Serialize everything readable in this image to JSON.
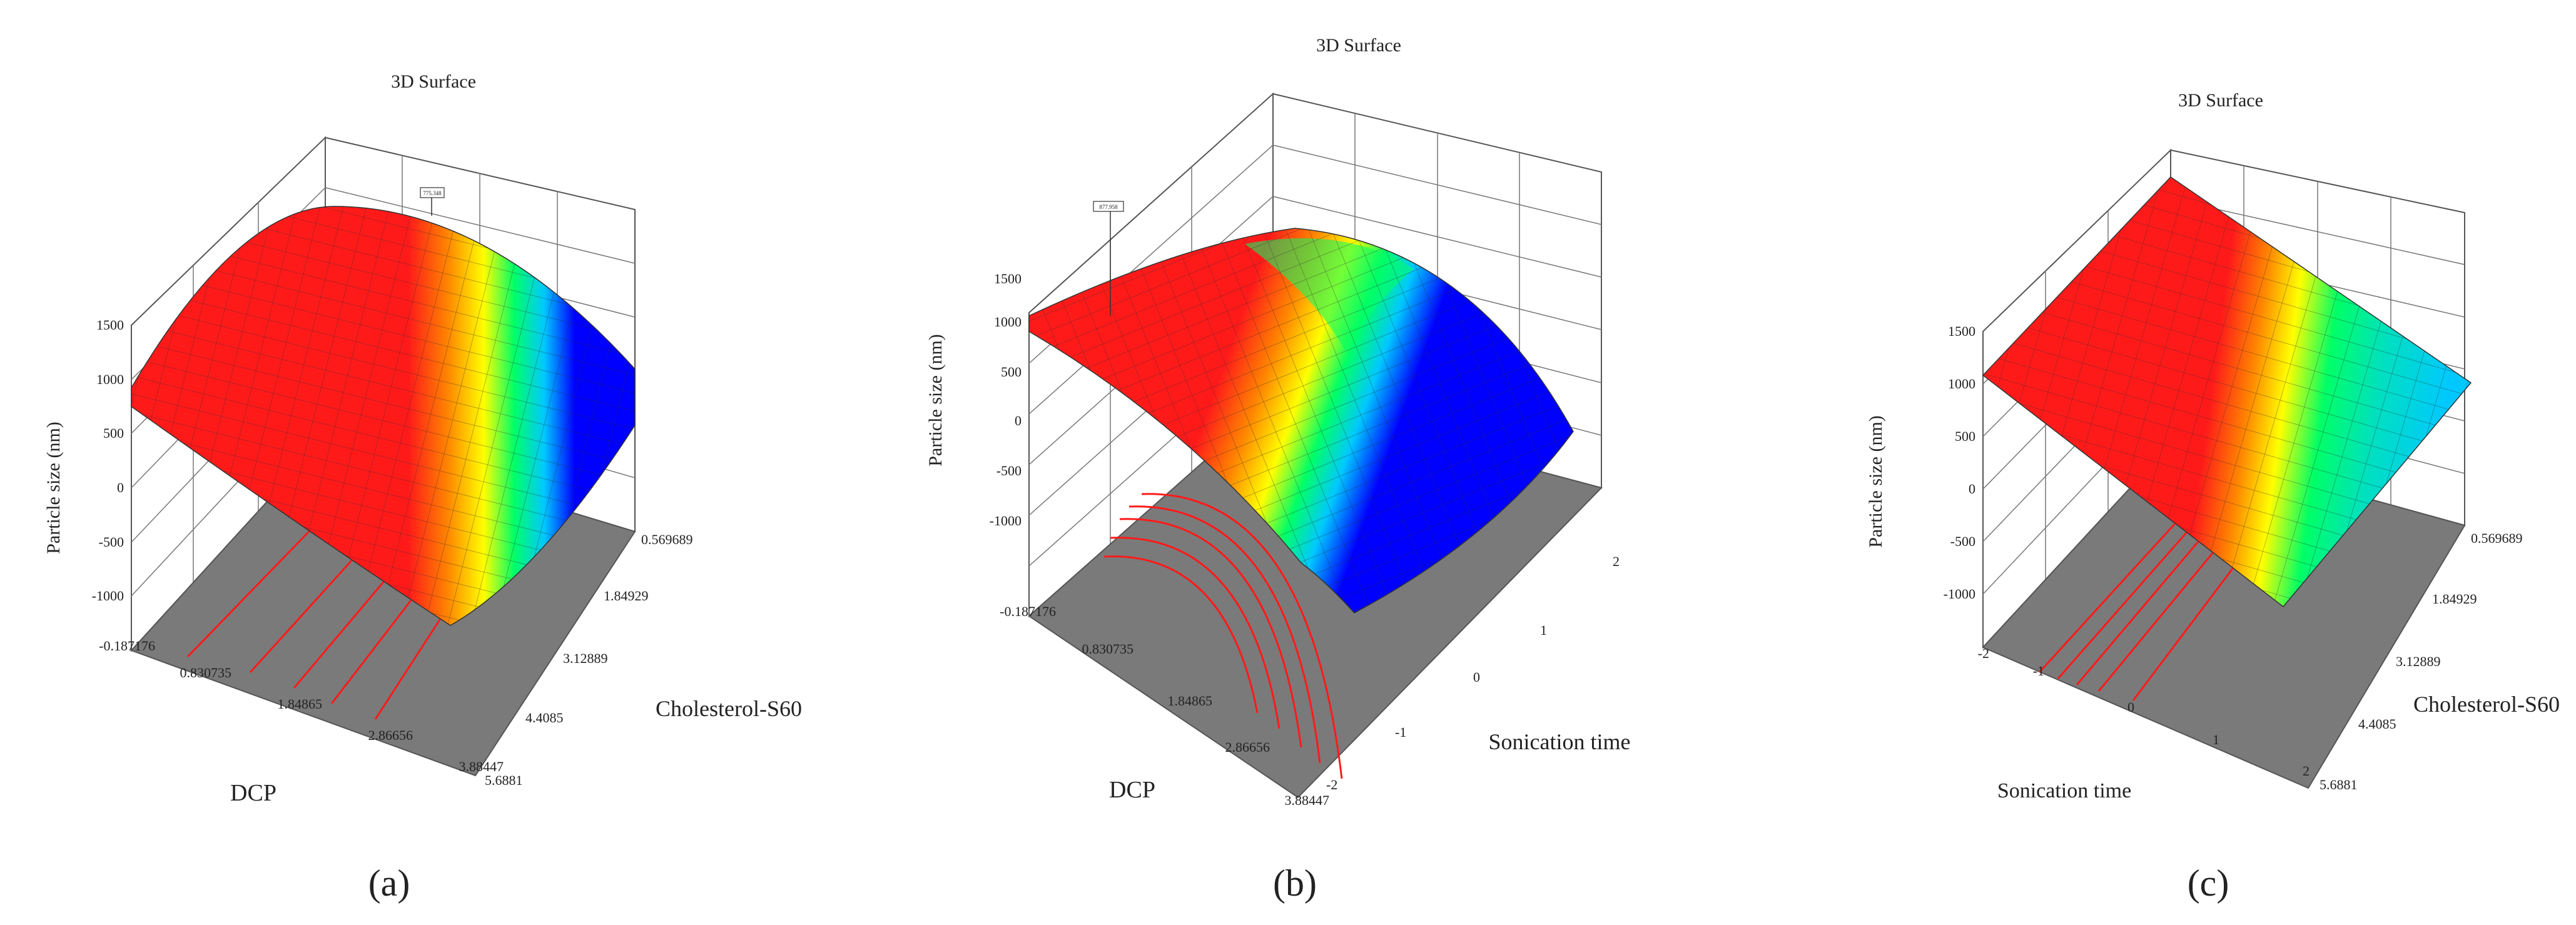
{
  "chart_data": [
    {
      "type": "surface3d",
      "title": "3D Surface",
      "zlabel": "Particle size (nm)",
      "xlabel": "DCP",
      "ylabel": "Cholesterol-S60",
      "z_ticks": [
        "1500",
        "1000",
        "500",
        "0",
        "-500",
        "-1000"
      ],
      "x_ticks": [
        "-0.187176",
        "0.830735",
        "1.84865",
        "2.86656",
        "3.88447"
      ],
      "y_ticks": [
        "0.569689",
        "1.84929",
        "3.12889",
        "4.4085",
        "5.6881"
      ],
      "zlim": [
        -1500,
        1500
      ],
      "flag_label": "775.348",
      "caption": "(a)"
    },
    {
      "type": "surface3d",
      "title": "3D Surface",
      "zlabel": "Particle size (nm)",
      "xlabel": "DCP",
      "ylabel": "Sonication time",
      "z_ticks": [
        "1500",
        "1000",
        "500",
        "0",
        "-500",
        "-1000"
      ],
      "x_ticks": [
        "-0.187176",
        "0.830735",
        "1.84865",
        "2.86656",
        "3.88447"
      ],
      "y_ticks": [
        "2",
        "1",
        "0",
        "-1",
        "-2"
      ],
      "zlim": [
        -1500,
        1500
      ],
      "flag_label": "877.958",
      "caption": "(b)"
    },
    {
      "type": "surface3d",
      "title": "3D Surface",
      "zlabel": "Particle size (nm)",
      "xlabel": "Sonication time",
      "ylabel": "Cholesterol-S60",
      "z_ticks": [
        "1500",
        "1000",
        "500",
        "0",
        "-500",
        "-1000"
      ],
      "x_ticks": [
        "-2",
        "-1",
        "0",
        "1",
        "2"
      ],
      "y_ticks": [
        "0.569689",
        "1.84929",
        "3.12889",
        "4.4085",
        "5.6881"
      ],
      "zlim": [
        -1500,
        1500
      ],
      "flag_label": "",
      "caption": "(c)"
    }
  ],
  "colors": {
    "frame": "#555555",
    "floor": "#7a7a7a",
    "contour": "#ff1a1a",
    "mesh": "#2a2a2a",
    "colormap": [
      "#0000ff",
      "#00c8ff",
      "#00ff66",
      "#ffff00",
      "#ff8800",
      "#ff1a1a"
    ]
  }
}
